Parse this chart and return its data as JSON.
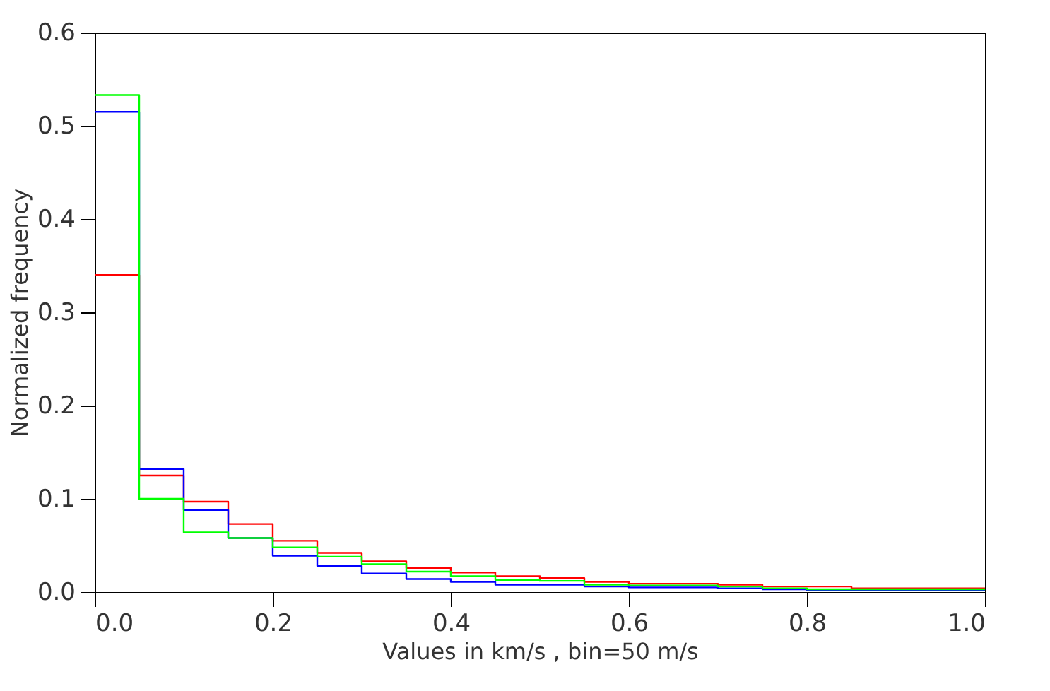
{
  "chart_data": {
    "type": "histogram",
    "xlabel": "Values in km/s , bin=50 m/s",
    "ylabel": "Normalized frequency",
    "bins": [
      0,
      0.05,
      0.1,
      0.15,
      0.2,
      0.25,
      0.3,
      0.35,
      0.4,
      0.45,
      0.5,
      0.55,
      0.6,
      0.65,
      0.7,
      0.75,
      0.8,
      0.85,
      0.9,
      0.95,
      1.0
    ],
    "series": [
      {
        "color": "#ff0000",
        "values": [
          0.34,
          0.125,
          0.097,
          0.073,
          0.055,
          0.042,
          0.033,
          0.026,
          0.021,
          0.017,
          0.015,
          0.011,
          0.009,
          0.009,
          0.008,
          0.006,
          0.006,
          0.004,
          0.004,
          0.004
        ]
      },
      {
        "color": "#0000ff",
        "values": [
          0.515,
          0.132,
          0.088,
          0.058,
          0.039,
          0.028,
          0.02,
          0.014,
          0.011,
          0.008,
          0.008,
          0.006,
          0.005,
          0.005,
          0.004,
          0.003,
          0.002,
          0.002,
          0.002,
          0.002
        ]
      },
      {
        "color": "#00ff00",
        "values": [
          0.533,
          0.1,
          0.064,
          0.058,
          0.048,
          0.038,
          0.03,
          0.022,
          0.017,
          0.013,
          0.012,
          0.008,
          0.007,
          0.007,
          0.006,
          0.004,
          0.003,
          0.003,
          0.003,
          0.003
        ]
      }
    ],
    "xlim": [
      0,
      1.0
    ],
    "ylim": [
      0,
      0.6
    ],
    "xticks": [
      {
        "value": 0,
        "label": "0.0"
      },
      {
        "value": 0.2,
        "label": "0.2"
      },
      {
        "value": 0.4,
        "label": "0.4"
      },
      {
        "value": 0.6,
        "label": "0.6"
      },
      {
        "value": 0.8,
        "label": "0.8"
      },
      {
        "value": 1.0,
        "label": "1.0"
      }
    ],
    "yticks": [
      {
        "value": 0,
        "label": "0.0"
      },
      {
        "value": 0.1,
        "label": "0.1"
      },
      {
        "value": 0.2,
        "label": "0.2"
      },
      {
        "value": 0.3,
        "label": "0.3"
      },
      {
        "value": 0.4,
        "label": "0.4"
      },
      {
        "value": 0.5,
        "label": "0.5"
      },
      {
        "value": 0.6,
        "label": "0.6"
      }
    ],
    "grid": false
  }
}
